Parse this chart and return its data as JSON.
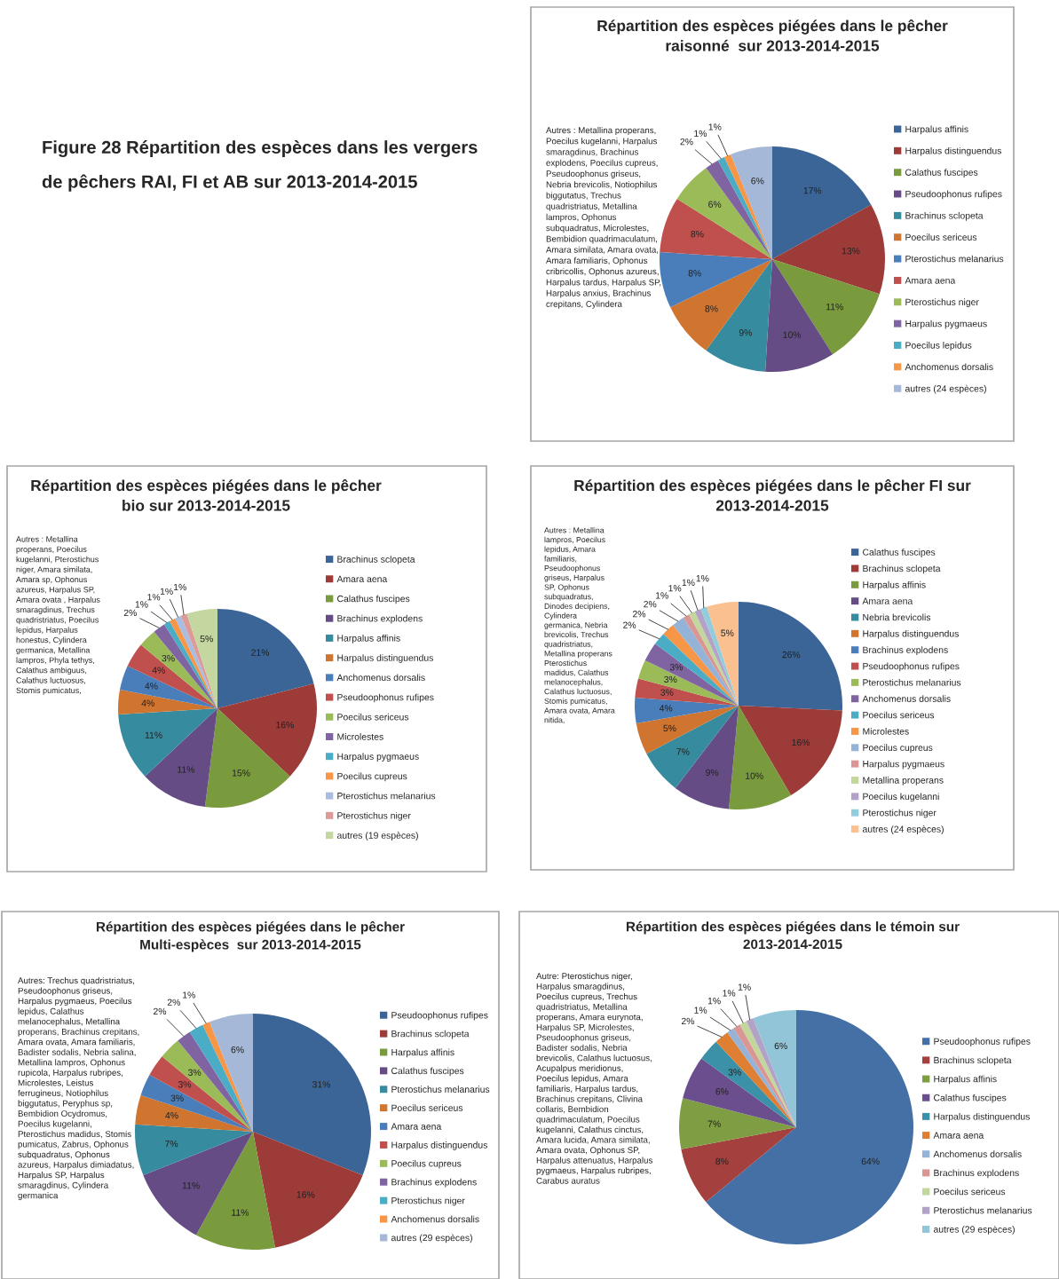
{
  "chart_data": [
    {
      "type": "pie",
      "title": "Répartition des espèces piégées dans le pêcher raisonné  sur 2013-2014-2015",
      "legend": "right",
      "categories": [
        "Harpalus affinis",
        "Harpalus distinguendus",
        "Calathus fuscipes",
        "Pseudoophonus rufipes",
        "Brachinus sclopeta",
        "Poecilus sericeus",
        "Pterostichus melanarius",
        "Amara aena",
        "Pterostichus niger",
        "Harpalus pygmaeus",
        "Poecilus lepidus",
        "Anchomenus dorsalis",
        "autres (24 espèces)"
      ],
      "values": [
        17,
        13,
        11,
        10,
        9,
        8,
        8,
        8,
        6,
        2,
        1,
        1,
        6
      ],
      "value_labels": [
        "17%",
        "13%",
        "11%",
        "10%",
        "9%",
        "8%",
        "8%",
        "8%",
        "6%",
        "2%",
        "1%",
        "1%",
        "6%"
      ],
      "colors": [
        "#3b6497",
        "#9c3b38",
        "#7a9a3e",
        "#664c85",
        "#378b9f",
        "#cf7530",
        "#4a7ebb",
        "#c0504d",
        "#9bbb59",
        "#8064a2",
        "#4bacc6",
        "#f79646",
        "#a5b8d8"
      ],
      "annotations": [
        "Figure 28 Répartition des espèces dans les vergers de pêchers RAI, FI et AB sur 2013-2014-2015",
        "Autres : Metallina properans, Poecilus kugelanni, Harpalus smaragdinus, Brachinus explodens, Poecilus cupreus, Pseudoophonus griseus, Nebria brevicolis, Notiophilus biggutatus, Trechus quadristriatus, Metallina lampros, Ophonus subquadratus, Microlestes, Bembidion quadrimaculatum, Amara similata, Amara ovata, Amara familiaris, Ophonus cribricollis, Ophonus azureus, Harpalus tardus, Harpalus SP, Harpalus anxius, Brachinus crepitans, Cylindera"
      ]
    },
    {
      "type": "pie",
      "title": "Répartition des espèces piégées dans le pêcher bio sur 2013-2014-2015",
      "legend": "right",
      "categories": [
        "Brachinus sclopeta",
        "Amara aena",
        "Calathus fuscipes",
        "Brachinus explodens",
        "Harpalus affinis",
        "Harpalus distinguendus",
        "Anchomenus dorsalis",
        "Pseudoophonus rufipes",
        "Poecilus sericeus",
        "Microlestes",
        "Harpalus pygmaeus",
        "Poecilus cupreus",
        "Pterostichus melanarius",
        "Pterostichus niger",
        "autres (19 espèces)"
      ],
      "values": [
        21,
        16,
        15,
        11,
        11,
        4,
        4,
        4,
        3,
        2,
        1,
        1,
        1,
        1,
        5
      ],
      "value_labels": [
        "21%",
        "16%",
        "15%",
        "11%",
        "11%",
        "4%",
        "4%",
        "4%",
        "3%",
        "2%",
        "1%",
        "1%",
        "1%",
        "1%",
        "5%"
      ],
      "colors": [
        "#3b6497",
        "#9c3b38",
        "#7a9a3e",
        "#664c85",
        "#378b9f",
        "#cf7530",
        "#4a7ebb",
        "#c0504d",
        "#9bbb59",
        "#8064a2",
        "#4bacc6",
        "#f79646",
        "#a9bde0",
        "#dc9a98",
        "#c4d7a0"
      ],
      "annotations": [
        "Autres : Metallina properans, Poecilus kugelanni, Pterostichus niger, Amara similata, Amara sp, Ophonus azureus, Harpalus SP, Amara ovata , Harpalus smaragdinus, Trechus quadristriatus, Poecilus lepidus, Harpalus honestus, Cylindera germanica, Metallina lampros, Phyla tethys, Calathus ambiguus, Calathus luctuosus, Stomis pumicatus,"
      ]
    },
    {
      "type": "pie",
      "title": "Répartition des espèces piégées dans le pêcher FI sur 2013-2014-2015",
      "legend": "right",
      "categories": [
        "Calathus fuscipes",
        "Brachinus sclopeta",
        "Harpalus affinis",
        "Amara aena",
        "Nebria brevicolis",
        "Harpalus distinguendus",
        "Brachinus explodens",
        "Pseudoophonus rufipes",
        "Pterostichus melanarius",
        "Anchomenus dorsalis",
        "Poecilus sericeus",
        "Microlestes",
        "Poecilus cupreus",
        "Harpalus pygmaeus",
        "Metallina properans",
        "Poecilus kugelanni",
        "Pterostichus niger",
        "autres (24 espèces)"
      ],
      "values": [
        26,
        16,
        10,
        9,
        7,
        5,
        4,
        3,
        3,
        3,
        2,
        2,
        2,
        1,
        1,
        1,
        1,
        5
      ],
      "value_labels": [
        "26%",
        "16%",
        "10%",
        "9%",
        "7%",
        "5%",
        "4%",
        "3%",
        "3%",
        "3%",
        "2%",
        "2%",
        "2%",
        "1%",
        "1%",
        "1%",
        "1%",
        "5%"
      ],
      "colors": [
        "#3b6497",
        "#9c3b38",
        "#7a9a3e",
        "#664c85",
        "#378b9f",
        "#cf7530",
        "#4a7ebb",
        "#c0504d",
        "#9bbb59",
        "#8064a2",
        "#4bacc6",
        "#f79646",
        "#95b3d7",
        "#d99694",
        "#c3d69b",
        "#b3a2c7",
        "#93cddd",
        "#fac090"
      ],
      "annotations": [
        "Autres : Metallina lampros, Poecilus lepidus, Amara familiaris, Pseudoophonus griseus, Harpalus SP, Ophonus subquadratus, Dinodes decipiens, Cylindera germanica, Nebria brevicolis, Trechus quadristriatus, Metallina properans Pterostichus madidus, Calathus melanocephalus, Calathus luctuosus, Stomis pumicatus, Amara ovata, Amara nitida,"
      ]
    },
    {
      "type": "pie",
      "title": "Répartition des espèces piégées dans le pêcher Multi-espèces  sur 2013-2014-2015",
      "legend": "right",
      "categories": [
        "Pseudoophonus rufipes",
        "Brachinus sclopeta",
        "Harpalus affinis",
        "Calathus fuscipes",
        "Pterostichus melanarius",
        "Poecilus sericeus",
        "Amara aena",
        "Harpalus distinguendus",
        "Poecilus cupreus",
        "Brachinus explodens",
        "Pterostichus niger",
        "Anchomenus dorsalis",
        "autres (29 espèces)"
      ],
      "values": [
        31,
        16,
        11,
        11,
        7,
        4,
        3,
        3,
        3,
        2,
        2,
        1,
        6
      ],
      "value_labels": [
        "31%",
        "16%",
        "11%",
        "11%",
        "7%",
        "4%",
        "3%",
        "3%",
        "3%",
        "2%",
        "2%",
        "1%",
        "6%"
      ],
      "colors": [
        "#3b6497",
        "#9c3b38",
        "#7a9a3e",
        "#664c85",
        "#378b9f",
        "#cf7530",
        "#4a7ebb",
        "#c0504d",
        "#9bbb59",
        "#8064a2",
        "#4bacc6",
        "#f79646",
        "#a5b8d8"
      ],
      "annotations": [
        "Autres: Trechus quadristriatus, Pseudoophonus griseus, Harpalus pygmaeus, Poecilus lepidus, Calathus melanocephalus, Metallina properans, Brachinus crepitans, Amara ovata, Amara familiaris, Badister sodalis, Nebria salina, Metallina lampros, Ophonus rupicola, Harpalus rubripes, Microlestes, Leistus ferrugineus, Notiophilus biggutatus, Peryphus sp, Bembidion Ocydromus, Poecilus kugelanni, Pterostichus madidus, Stomis pumicatus, Zabrus, Ophonus subquadratus, Ophonus azureus, Harpalus dimiadatus, Harpalus SP, Harpalus smaragdinus, Cylindera germanica"
      ]
    },
    {
      "type": "pie",
      "title": "Répartition des espèces piégées dans le témoin sur 2013-2014-2015",
      "legend": "right",
      "categories": [
        "Pseudoophonus rufipes",
        "Brachinus sclopeta",
        "Harpalus affinis",
        "Calathus fuscipes",
        "Harpalus distinguendus",
        "Amara aena",
        "Anchomenus dorsalis",
        "Brachinus explodens",
        "Poecilus sericeus",
        "Pterostichus melanarius",
        "autres (29 espèces)"
      ],
      "values": [
        64,
        8,
        7,
        6,
        3,
        2,
        1,
        1,
        1,
        1,
        6
      ],
      "value_labels": [
        "64%",
        "8%",
        "7%",
        "6%",
        "3%",
        "2%",
        "1%",
        "1%",
        "1%",
        "1%",
        "6%"
      ],
      "colors": [
        "#4470a6",
        "#a4403d",
        "#7f9e43",
        "#6b4e8e",
        "#3b91a8",
        "#de7f33",
        "#95b3d7",
        "#d99694",
        "#c3d69b",
        "#b3a2c7",
        "#93c5d8"
      ],
      "annotations": [
        "Autre: Pterostichus niger, Harpalus smaragdinus, Poecilus cupreus, Trechus quadristriatus, Metallina properans, Amara eurynota, Harpalus SP, Microlestes, Pseudoophonus griseus, Badister sodalis, Nebria brevicolis, Calathus luctuosus, Acupalpus meridionus, Poecilus lepidus, Amara familiaris, Harpalus tardus, Brachinus crepitans, Clivina collaris, Bembidion quadrimaculatum, Poecilus kugelanni, Calathus cinctus, Amara lucida, Amara similata, Amara ovata, Ophonus SP, Harpalus attenuatus, Harpalus pygmaeus, Harpalus rubripes, Carabus auratus"
      ]
    }
  ]
}
